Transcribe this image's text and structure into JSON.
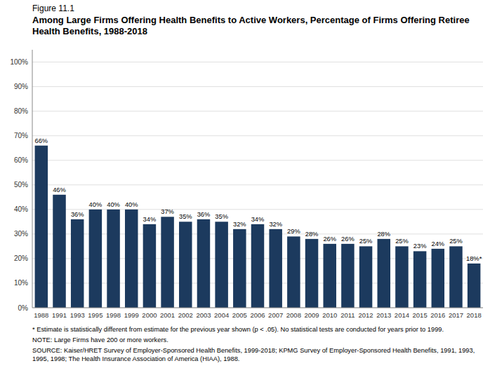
{
  "chart_data": {
    "type": "bar",
    "title": "Among Large Firms Offering Health Benefits to Active Workers, Percentage of Firms Offering Retiree Health Benefits, 1988-2018",
    "annotations": [
      "Figure 11.1",
      "* Estimate is statistically different from estimate for the previous year shown (p < .05). No statistical tests are conducted for years prior to 1999.",
      "NOTE: Large Firms have 200 or more workers.",
      "SOURCE: Kaiser/HRET Survey of Employer-Sponsored Health Benefits, 1999-2018; KPMG Survey of Employer-Sponsored Health Benefits, 1991, 1993, 1995, 1998; The Health Insurance Association of America (HIAA), 1988."
    ],
    "categories": [
      "1988",
      "1991",
      "1993",
      "1995",
      "1998",
      "1999",
      "2000",
      "2001",
      "2002",
      "2003",
      "2004",
      "2005",
      "2006",
      "2007",
      "2008",
      "2009",
      "2010",
      "2011",
      "2012",
      "2013",
      "2014",
      "2015",
      "2016",
      "2017",
      "2018"
    ],
    "values": [
      66,
      46,
      36,
      40,
      40,
      40,
      34,
      37,
      35,
      36,
      35,
      32,
      34,
      32,
      29,
      28,
      26,
      26,
      25,
      28,
      25,
      23,
      24,
      25,
      18
    ],
    "value_labels": [
      "66%",
      "46%",
      "36%",
      "40%",
      "40%",
      "40%",
      "34%",
      "37%",
      "35%",
      "36%",
      "35%",
      "32%",
      "34%",
      "32%",
      "29%",
      "28%",
      "26%",
      "26%",
      "25%",
      "28%",
      "25%",
      "23%",
      "24%",
      "25%",
      "18%*"
    ],
    "data_labels": true,
    "color": "#1c3a5e",
    "ylim": [
      0,
      105
    ],
    "yticks": [
      {
        "value": 0,
        "label": "0%"
      },
      {
        "value": 10,
        "label": "10%"
      },
      {
        "value": 20,
        "label": "20%"
      },
      {
        "value": 30,
        "label": "30%"
      },
      {
        "value": 40,
        "label": "40%"
      },
      {
        "value": 50,
        "label": "50%"
      },
      {
        "value": 60,
        "label": "60%"
      },
      {
        "value": 70,
        "label": "70%"
      },
      {
        "value": 80,
        "label": "80%"
      },
      {
        "value": 90,
        "label": "90%"
      },
      {
        "value": 100,
        "label": "100%"
      }
    ],
    "grid": true
  }
}
